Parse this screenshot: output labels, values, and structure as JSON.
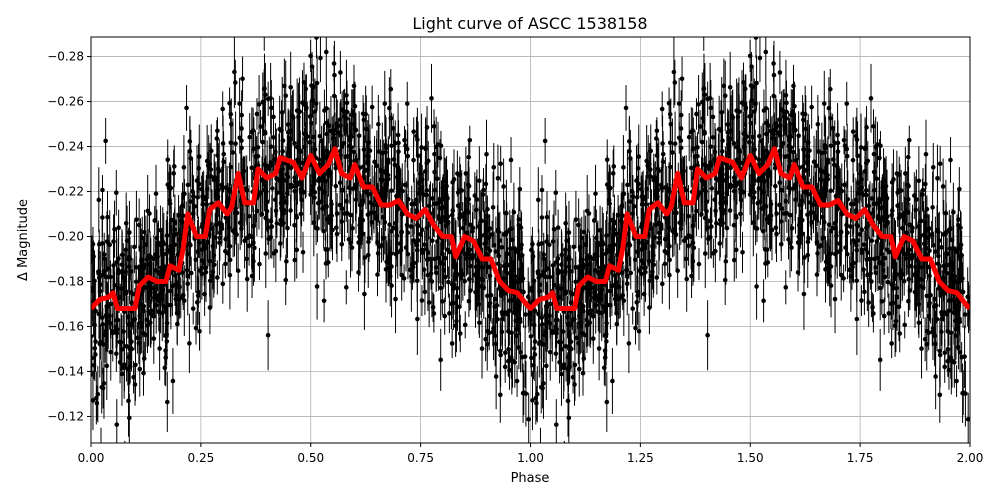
{
  "chart_data": {
    "type": "scatter",
    "title": "Light curve of ASCC 1538158",
    "xlabel": "Phase",
    "ylabel": "Δ Magnitude",
    "xlim": [
      0,
      2
    ],
    "ylim": [
      -0.1082,
      -0.2887
    ],
    "y_inverted": true,
    "grid": true,
    "x_ticks": [
      "0.00",
      "0.25",
      "0.50",
      "0.75",
      "1.00",
      "1.25",
      "1.50",
      "1.75",
      "2.00"
    ],
    "x_tick_values": [
      0,
      0.25,
      0.5,
      0.75,
      1,
      1.25,
      1.5,
      1.75,
      2
    ],
    "y_ticks": [
      "−0.28",
      "−0.26",
      "−0.24",
      "−0.22",
      "−0.20",
      "−0.18",
      "−0.16",
      "−0.14",
      "−0.12"
    ],
    "y_tick_values": [
      -0.28,
      -0.26,
      -0.24,
      -0.22,
      -0.2,
      -0.18,
      -0.16,
      -0.14,
      -0.12
    ],
    "points_color": "#000000",
    "curve_color": "#ff0000",
    "series": [
      {
        "kind": "errorbar-scatter",
        "description_of_distribution": "phase-folded photometry, scatter ~0.02 mag around curve"
      },
      {
        "kind": "line",
        "x": [
          0.0,
          0.02,
          0.04,
          0.05,
          0.06,
          0.08,
          0.1,
          0.11,
          0.13,
          0.15,
          0.17,
          0.18,
          0.2,
          0.21,
          0.22,
          0.24,
          0.26,
          0.27,
          0.29,
          0.31,
          0.32,
          0.335,
          0.35,
          0.37,
          0.38,
          0.4,
          0.42,
          0.43,
          0.46,
          0.48,
          0.5,
          0.52,
          0.54,
          0.555,
          0.57,
          0.59,
          0.6,
          0.62,
          0.64,
          0.66,
          0.68,
          0.7,
          0.72,
          0.74,
          0.76,
          0.78,
          0.8,
          0.82,
          0.83,
          0.85,
          0.87,
          0.89,
          0.91,
          0.93,
          0.95,
          0.97,
          0.99,
          1.0,
          1.02,
          1.04,
          1.05,
          1.06,
          1.08,
          1.1,
          1.11,
          1.13,
          1.15,
          1.17,
          1.18,
          1.2,
          1.21,
          1.22,
          1.24,
          1.26,
          1.27,
          1.29,
          1.31,
          1.32,
          1.335,
          1.35,
          1.37,
          1.38,
          1.4,
          1.42,
          1.43,
          1.46,
          1.48,
          1.5,
          1.52,
          1.54,
          1.555,
          1.57,
          1.59,
          1.6,
          1.62,
          1.64,
          1.66,
          1.68,
          1.7,
          1.72,
          1.74,
          1.76,
          1.78,
          1.8,
          1.82,
          1.83,
          1.85,
          1.87,
          1.89,
          1.91,
          1.93,
          1.95,
          1.97,
          1.99,
          2.0
        ],
        "y": [
          -0.168,
          -0.172,
          -0.173,
          -0.175,
          -0.168,
          -0.168,
          -0.168,
          -0.178,
          -0.182,
          -0.18,
          -0.18,
          -0.187,
          -0.185,
          -0.195,
          -0.21,
          -0.2,
          -0.2,
          -0.212,
          -0.215,
          -0.21,
          -0.213,
          -0.228,
          -0.215,
          -0.215,
          -0.23,
          -0.226,
          -0.228,
          -0.235,
          -0.233,
          -0.226,
          -0.236,
          -0.228,
          -0.232,
          -0.239,
          -0.228,
          -0.226,
          -0.232,
          -0.222,
          -0.222,
          -0.214,
          -0.214,
          -0.216,
          -0.21,
          -0.208,
          -0.212,
          -0.205,
          -0.2,
          -0.2,
          -0.191,
          -0.2,
          -0.198,
          -0.19,
          -0.19,
          -0.18,
          -0.176,
          -0.175,
          -0.17,
          -0.168,
          -0.172,
          -0.173,
          -0.175,
          -0.168,
          -0.168,
          -0.168,
          -0.178,
          -0.182,
          -0.18,
          -0.18,
          -0.187,
          -0.185,
          -0.195,
          -0.21,
          -0.2,
          -0.2,
          -0.212,
          -0.215,
          -0.21,
          -0.213,
          -0.228,
          -0.215,
          -0.215,
          -0.23,
          -0.226,
          -0.228,
          -0.235,
          -0.233,
          -0.226,
          -0.236,
          -0.228,
          -0.232,
          -0.239,
          -0.228,
          -0.226,
          -0.232,
          -0.222,
          -0.222,
          -0.214,
          -0.214,
          -0.216,
          -0.21,
          -0.208,
          -0.212,
          -0.205,
          -0.2,
          -0.2,
          -0.191,
          -0.2,
          -0.198,
          -0.19,
          -0.19,
          -0.18,
          -0.176,
          -0.175,
          -0.17,
          -0.168
        ]
      }
    ]
  }
}
